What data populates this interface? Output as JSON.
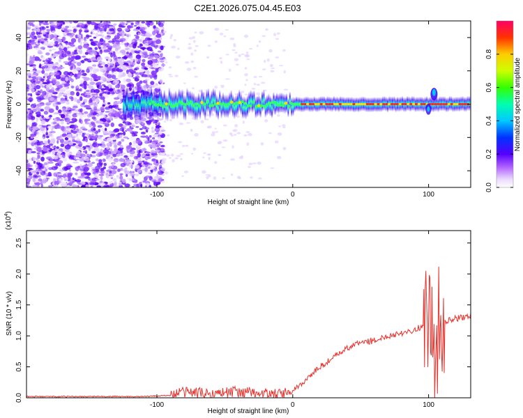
{
  "title": "C2E1.2026.075.04.45.E03",
  "chart_data": [
    {
      "type": "heatmap",
      "xlabel": "Height of straight line (km)",
      "ylabel": "Frequency (Hz)",
      "xlim": [
        -196,
        131
      ],
      "ylim": [
        -50,
        50
      ],
      "xticks": [
        -100,
        0,
        100
      ],
      "yticks": [
        -40,
        -20,
        0,
        20,
        40
      ],
      "tick_labels_x": [
        "-100",
        "0",
        "100"
      ],
      "tick_labels_y": [
        "-40",
        "-20",
        "0",
        "20",
        "40"
      ],
      "colorbar": {
        "label": "Normalized spectral amplitude",
        "range": [
          0,
          1
        ],
        "ticks": [
          0.0,
          0.2,
          0.4,
          0.6,
          0.8
        ],
        "tick_labels": [
          "0.0",
          "0.2",
          "0.4",
          "0.6",
          "0.8"
        ]
      },
      "features": [
        {
          "name": "noise-region",
          "x_range": [
            -196,
            -95
          ],
          "y_range": [
            -50,
            50
          ],
          "amplitude": 0.2
        },
        {
          "name": "signal-trace",
          "x_range": [
            -125,
            131
          ],
          "center_hz": 0,
          "amplitude": 0.85
        },
        {
          "name": "oscillation",
          "x_center": 104,
          "amplitude": 0.6
        }
      ]
    },
    {
      "type": "line",
      "xlabel": "Height of straight line (km)",
      "ylabel": "SNR (10 * v/v)",
      "yscale_label": "(x10",
      "yscale_exp": "4",
      "yscale_close": ")",
      "xlim": [
        -196,
        131
      ],
      "ylim": [
        0,
        2.7
      ],
      "xticks": [
        -100,
        0,
        100
      ],
      "yticks": [
        0.0,
        0.5,
        1.0,
        1.5,
        2.0,
        2.5
      ],
      "tick_labels_x": [
        "-100",
        "0",
        "100"
      ],
      "tick_labels_y": [
        "0.0",
        "0.5",
        "1.0",
        "1.5",
        "2.0",
        "2.5"
      ],
      "series": [
        {
          "name": "SNR",
          "color": "#e8312b",
          "x": [
            -196,
            -150,
            -110,
            -90,
            -80,
            -70,
            -60,
            -50,
            -40,
            -30,
            -20,
            -10,
            0,
            10,
            20,
            30,
            40,
            50,
            60,
            70,
            80,
            90,
            95,
            100,
            103,
            106,
            108,
            110,
            115,
            120,
            131
          ],
          "y": [
            0.02,
            0.02,
            0.02,
            0.04,
            0.1,
            0.08,
            0.06,
            0.09,
            0.1,
            0.08,
            0.07,
            0.05,
            0.1,
            0.3,
            0.5,
            0.65,
            0.8,
            0.9,
            0.92,
            1.0,
            1.05,
            1.1,
            1.15,
            1.3,
            1.0,
            0.7,
            1.4,
            1.2,
            1.25,
            1.28,
            1.32
          ]
        }
      ]
    }
  ]
}
